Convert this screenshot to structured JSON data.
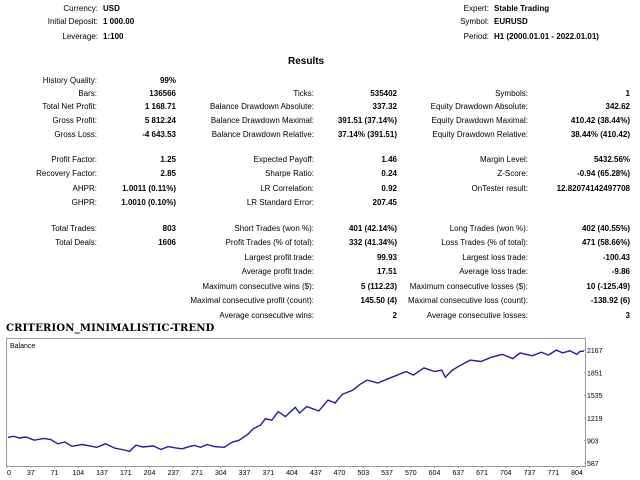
{
  "header": {
    "currency": {
      "label": "Currency:",
      "value": "USD"
    },
    "initial_deposit": {
      "label": "Initial Deposit:",
      "value": "1 000.00"
    },
    "leverage": {
      "label": "Leverage:",
      "value": "1:100"
    },
    "expert": {
      "label": "Expert:",
      "value": "Stable Trading"
    },
    "symbol": {
      "label": "Symbol:",
      "value": "EURUSD"
    },
    "period": {
      "label": "Period:",
      "value": "H1 (2000.01.01 - 2022.01.01)"
    }
  },
  "results_title": "Results",
  "stats": {
    "history_quality": {
      "label": "History Quality:",
      "value": "99%"
    },
    "bars": {
      "label": "Bars:",
      "value": "136566"
    },
    "ticks": {
      "label": "Ticks:",
      "value": "535402"
    },
    "symbols": {
      "label": "Symbols:",
      "value": "1"
    },
    "total_net_profit": {
      "label": "Total Net Profit:",
      "value": "1 168.71"
    },
    "balance_dd_abs": {
      "label": "Balance Drawdown Absolute:",
      "value": "337.32"
    },
    "equity_dd_abs": {
      "label": "Equity Drawdown Absolute:",
      "value": "342.62"
    },
    "gross_profit": {
      "label": "Gross Profit:",
      "value": "5 812.24"
    },
    "balance_dd_max": {
      "label": "Balance Drawdown Maximal:",
      "value": "391.51 (37.14%)"
    },
    "equity_dd_max": {
      "label": "Equity Drawdown Maximal:",
      "value": "410.42 (38.44%)"
    },
    "gross_loss": {
      "label": "Gross Loss:",
      "value": "-4 643.53"
    },
    "balance_dd_rel": {
      "label": "Balance Drawdown Relative:",
      "value": "37.14% (391.51)"
    },
    "equity_dd_rel": {
      "label": "Equity Drawdown Relative:",
      "value": "38.44% (410.42)"
    },
    "profit_factor": {
      "label": "Profit Factor:",
      "value": "1.25"
    },
    "expected_payoff": {
      "label": "Expected Payoff:",
      "value": "1.46"
    },
    "margin_level": {
      "label": "Margin Level:",
      "value": "5432.56%"
    },
    "recovery_factor": {
      "label": "Recovery Factor:",
      "value": "2.85"
    },
    "sharpe_ratio": {
      "label": "Sharpe Ratio:",
      "value": "0.24"
    },
    "z_score": {
      "label": "Z-Score:",
      "value": "-0.94 (65.28%)"
    },
    "ahpr": {
      "label": "AHPR:",
      "value": "1.0011 (0.11%)"
    },
    "lr_correlation": {
      "label": "LR Correlation:",
      "value": "0.92"
    },
    "ontester_result": {
      "label": "OnTester result:",
      "value": "12.82074142497708"
    },
    "ghpr": {
      "label": "GHPR:",
      "value": "1.0010 (0.10%)"
    },
    "lr_std_error": {
      "label": "LR Standard Error:",
      "value": "207.45"
    },
    "total_trades": {
      "label": "Total Trades:",
      "value": "803"
    },
    "short_trades": {
      "label": "Short Trades (won %):",
      "value": "401 (42.14%)"
    },
    "long_trades": {
      "label": "Long Trades (won %):",
      "value": "402 (40.55%)"
    },
    "total_deals": {
      "label": "Total Deals:",
      "value": "1606"
    },
    "profit_trades": {
      "label": "Profit Trades (% of total):",
      "value": "332 (41.34%)"
    },
    "loss_trades": {
      "label": "Loss Trades (% of total):",
      "value": "471 (58.66%)"
    },
    "largest_profit_trade": {
      "label": "Largest profit trade:",
      "value": "99.93"
    },
    "largest_loss_trade": {
      "label": "Largest loss trade:",
      "value": "-100.43"
    },
    "avg_profit_trade": {
      "label": "Average profit trade:",
      "value": "17.51"
    },
    "avg_loss_trade": {
      "label": "Average loss trade:",
      "value": "-9.86"
    },
    "max_consec_wins": {
      "label": "Maximum consecutive wins ($):",
      "value": "5 (112.23)"
    },
    "max_consec_losses": {
      "label": "Maximum consecutive losses ($):",
      "value": "10 (-125.49)"
    },
    "maximal_consec_profit": {
      "label": "Maximal consecutive profit (count):",
      "value": "145.50 (4)"
    },
    "maximal_consec_loss": {
      "label": "Maximal consecutive loss (count):",
      "value": "-138.92 (6)"
    },
    "avg_consec_wins": {
      "label": "Average consecutive wins:",
      "value": "2"
    },
    "avg_consec_losses": {
      "label": "Average consecutive losses:",
      "value": "3"
    }
  },
  "criterion_title": "CRITERION_MINIMALISTIC-TREND",
  "chart_data": {
    "type": "line",
    "title": "Balance",
    "series": [
      {
        "name": "Balance",
        "color": "#1e1ea0",
        "x": [
          0,
          8,
          16,
          25,
          37,
          50,
          60,
          70,
          80,
          90,
          104,
          115,
          125,
          137,
          150,
          160,
          171,
          180,
          190,
          204,
          215,
          225,
          237,
          245,
          255,
          262,
          271,
          280,
          290,
          304,
          315,
          325,
          337,
          345,
          355,
          362,
          371,
          380,
          390,
          404,
          410,
          420,
          437,
          450,
          460,
          470,
          485,
          495,
          505,
          520,
          540,
          560,
          570,
          585,
          600,
          610,
          615,
          625,
          635,
          650,
          665,
          680,
          695,
          710,
          720,
          737,
          750,
          760,
          771,
          780,
          790,
          800,
          804,
          810
        ],
        "values": [
          960,
          975,
          950,
          965,
          920,
          945,
          930,
          870,
          895,
          835,
          860,
          840,
          820,
          870,
          810,
          790,
          765,
          850,
          825,
          840,
          790,
          830,
          810,
          800,
          830,
          845,
          820,
          860,
          830,
          820,
          890,
          920,
          1000,
          1080,
          1130,
          1220,
          1200,
          1320,
          1250,
          1380,
          1300,
          1390,
          1330,
          1480,
          1440,
          1560,
          1620,
          1700,
          1760,
          1720,
          1800,
          1880,
          1830,
          1930,
          1880,
          1900,
          1800,
          1900,
          1960,
          2040,
          2020,
          2080,
          2120,
          2060,
          2140,
          2100,
          2150,
          2110,
          2180,
          2140,
          2170,
          2120,
          2160,
          2167
        ]
      }
    ],
    "y_ticks": [
      "2167",
      "1851",
      "1535",
      "1219",
      "903",
      "587"
    ],
    "y_tick_values": [
      2167,
      1851,
      1535,
      1219,
      903,
      587
    ],
    "x_ticks": [
      "0",
      "37",
      "71",
      "104",
      "137",
      "171",
      "204",
      "237",
      "271",
      "304",
      "337",
      "371",
      "404",
      "437",
      "470",
      "503",
      "537",
      "570",
      "604",
      "637",
      "671",
      "704",
      "737",
      "771",
      "804"
    ],
    "ylim": [
      587,
      2167
    ],
    "xlim": [
      0,
      810
    ]
  }
}
